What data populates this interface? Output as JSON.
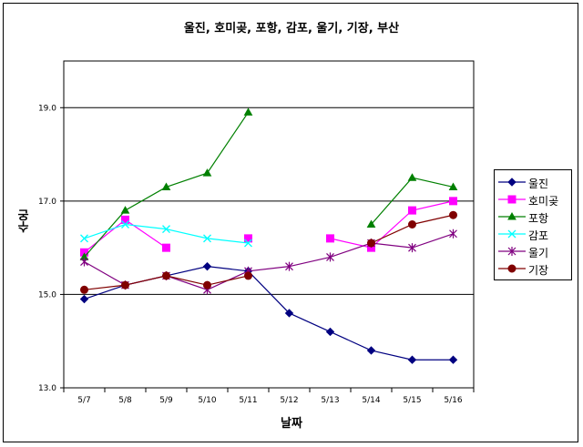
{
  "chart_data": {
    "type": "line",
    "title": "울진, 호미곶, 포항, 감포, 울기, 기장, 부산",
    "xlabel": "날짜",
    "ylabel": "수온",
    "categories": [
      "5/7",
      "5/8",
      "5/9",
      "5/10",
      "5/11",
      "5/12",
      "5/13",
      "5/14",
      "5/15",
      "5/16"
    ],
    "ylim": [
      13.0,
      20.0
    ],
    "yticks": [
      "13.0",
      "15.0",
      "17.0",
      "19.0"
    ],
    "ytick_values": [
      13.0,
      15.0,
      17.0,
      19.0
    ],
    "grid": "horizontal major at 15.0, 17.0, 19.0",
    "legend_position": "right",
    "series": [
      {
        "name": "울진",
        "color": "#000080",
        "marker": "diamond",
        "values": [
          14.9,
          15.2,
          15.4,
          15.6,
          15.5,
          14.6,
          14.2,
          13.8,
          13.6,
          13.6
        ]
      },
      {
        "name": "호미곶",
        "color": "#FF00FF",
        "marker": "square",
        "values": [
          15.9,
          16.6,
          16.0,
          null,
          16.2,
          null,
          16.2,
          16.0,
          16.8,
          17.0
        ]
      },
      {
        "name": "포항",
        "color": "#008000",
        "marker": "triangle",
        "values": [
          15.8,
          16.8,
          17.3,
          17.6,
          18.9,
          null,
          null,
          16.5,
          17.5,
          17.3
        ]
      },
      {
        "name": "감포",
        "color": "#00FFFF",
        "marker": "x",
        "values": [
          16.2,
          16.5,
          16.4,
          16.2,
          16.1,
          null,
          null,
          null,
          null,
          null
        ]
      },
      {
        "name": "울기",
        "color": "#800080",
        "marker": "star",
        "values": [
          15.7,
          15.2,
          15.4,
          15.1,
          15.5,
          15.6,
          15.8,
          16.1,
          16.0,
          16.3
        ]
      },
      {
        "name": "기장",
        "color": "#800000",
        "marker": "circle",
        "values": [
          15.1,
          15.2,
          15.4,
          15.2,
          15.4,
          null,
          null,
          16.1,
          16.5,
          16.7
        ]
      }
    ]
  }
}
